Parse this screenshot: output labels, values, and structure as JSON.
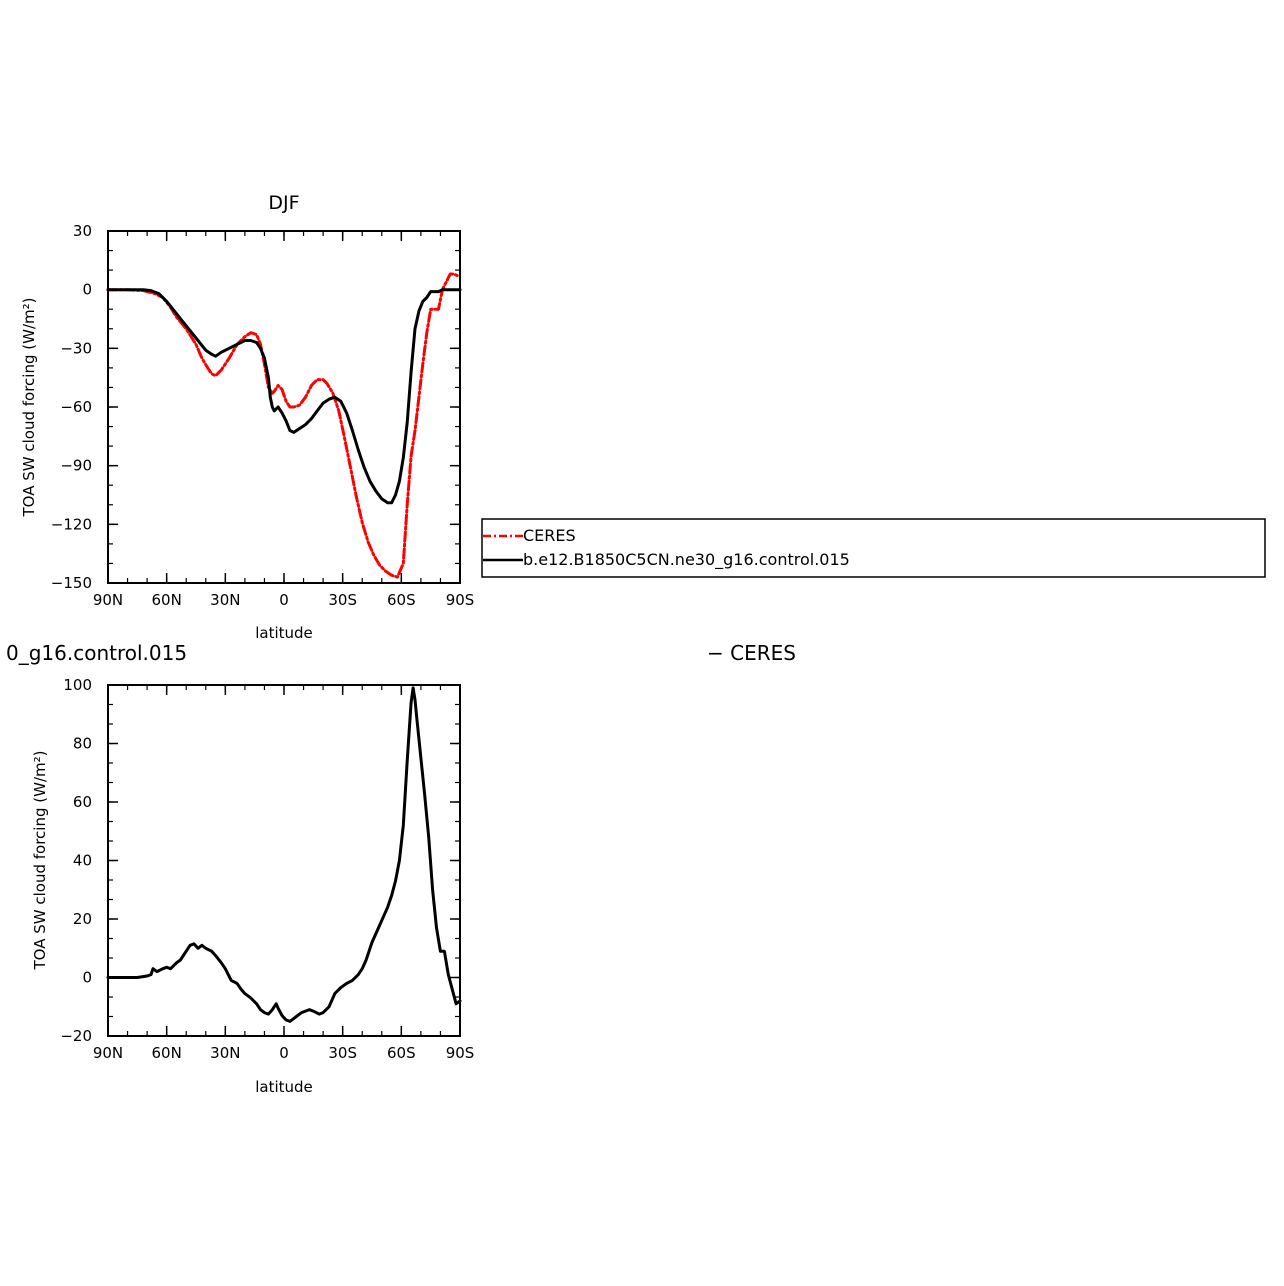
{
  "chart_data": [
    {
      "type": "line",
      "title": "DJF",
      "xlabel": "latitude",
      "ylabel": "TOA SW cloud forcing (W/m²)",
      "xlim": [
        90,
        -90
      ],
      "ylim": [
        -150,
        30
      ],
      "x_ticks": [
        90,
        60,
        30,
        0,
        -30,
        -60,
        -90
      ],
      "x_tick_labels": [
        "90N",
        "60N",
        "30N",
        "0",
        "30S",
        "60S",
        "90S"
      ],
      "y_ticks": [
        30,
        0,
        -30,
        -60,
        -90,
        -120,
        -150
      ],
      "y_tick_labels": [
        "30",
        "0",
        "−30",
        "−60",
        "−90",
        "−120",
        "−150"
      ],
      "series": [
        {
          "name": "CERES",
          "color": "#ff0000",
          "style": "dashed",
          "x": [
            90,
            80,
            72,
            66,
            62,
            58,
            55,
            50,
            45,
            42,
            39,
            37,
            35,
            32,
            28,
            24,
            20,
            17,
            14,
            12,
            10,
            8,
            6,
            5,
            3,
            1,
            -1,
            -3,
            -5,
            -8,
            -11,
            -14,
            -17,
            -20,
            -22,
            -25,
            -28,
            -31,
            -34,
            -37,
            -40,
            -43,
            -46,
            -49,
            -52,
            -55,
            -58,
            -61,
            -63,
            -65,
            -67,
            -69,
            -71,
            -73,
            -75,
            -77,
            -79,
            -81,
            -83,
            -85,
            -87,
            -89
          ],
          "y": [
            0,
            0,
            -0.5,
            -2,
            -4,
            -9,
            -14,
            -20,
            -28,
            -35,
            -40,
            -43,
            -44,
            -41,
            -35,
            -28,
            -24,
            -22,
            -23,
            -28,
            -38,
            -50,
            -53,
            -52,
            -49,
            -51,
            -57,
            -60,
            -60,
            -59,
            -55,
            -49,
            -46,
            -46,
            -48,
            -53,
            -62,
            -76,
            -91,
            -106,
            -119,
            -129,
            -136,
            -141,
            -144,
            -146,
            -147,
            -140,
            -110,
            -85,
            -72,
            -55,
            -38,
            -22,
            -10,
            -10,
            -10,
            0,
            4,
            8,
            8,
            7
          ]
        },
        {
          "name": "b.e12.B1850C5CN.ne30_g16.control.015",
          "color": "#000000",
          "style": "solid",
          "x": [
            90,
            80,
            72,
            68,
            64,
            60,
            56,
            52,
            48,
            44,
            40,
            37,
            35,
            32,
            28,
            24,
            20,
            17,
            14,
            12,
            10,
            8,
            7,
            6,
            5,
            3,
            1,
            -1,
            -3,
            -5,
            -8,
            -11,
            -14,
            -17,
            -20,
            -23,
            -26,
            -29,
            -32,
            -35,
            -38,
            -41,
            -44,
            -47,
            -50,
            -53,
            -55,
            -57,
            -59,
            -61,
            -63,
            -65,
            -67,
            -69,
            -71,
            -73,
            -75,
            -77,
            -79,
            -81,
            -84,
            -87,
            -90
          ],
          "y": [
            0,
            0,
            0,
            -0.5,
            -2,
            -6,
            -11,
            -16,
            -21,
            -26,
            -31,
            -33,
            -34,
            -32,
            -30,
            -28,
            -26,
            -26,
            -27,
            -30,
            -35,
            -45,
            -55,
            -60,
            -62,
            -60,
            -63,
            -67,
            -72,
            -73,
            -71,
            -69,
            -66,
            -62,
            -58,
            -56,
            -55,
            -57,
            -63,
            -72,
            -82,
            -91,
            -98,
            -103,
            -107,
            -109,
            -109,
            -105,
            -98,
            -86,
            -68,
            -42,
            -20,
            -11,
            -6,
            -4,
            -1,
            -1,
            -1,
            0,
            0,
            0,
            0
          ]
        }
      ],
      "legend": {
        "entries": [
          "CERES",
          "b.e12.B1850C5CN.ne30_g16.control.015"
        ],
        "placement": "right, outside plot"
      },
      "grid": false
    },
    {
      "type": "line",
      "title": "0_g16.control.015",
      "title_right": "− CERES",
      "xlabel": "latitude",
      "ylabel": "TOA SW cloud forcing (W/m²)",
      "xlim": [
        90,
        -90
      ],
      "ylim": [
        -20,
        100
      ],
      "x_ticks": [
        90,
        60,
        30,
        0,
        -30,
        -60,
        -90
      ],
      "x_tick_labels": [
        "90N",
        "60N",
        "30N",
        "0",
        "30S",
        "60S",
        "90S"
      ],
      "y_ticks": [
        100,
        80,
        60,
        40,
        20,
        0,
        -20
      ],
      "y_tick_labels": [
        "100",
        "80",
        "60",
        "40",
        "20",
        "0",
        "−20"
      ],
      "series": [
        {
          "color": "#000000",
          "style": "solid",
          "x": [
            90,
            80,
            75,
            70,
            68,
            67,
            65,
            62,
            60,
            58,
            55,
            53,
            50,
            48,
            46,
            44,
            42,
            40,
            37,
            35,
            32,
            30,
            27,
            24,
            22,
            20,
            17,
            14,
            12,
            10,
            8,
            6,
            5,
            4,
            3,
            1,
            -1,
            -3,
            -6,
            -9,
            -11,
            -13,
            -15,
            -18,
            -20,
            -23,
            -26,
            -29,
            -32,
            -35,
            -38,
            -40,
            -42,
            -45,
            -47,
            -49,
            -53,
            -55,
            -57,
            -59,
            -61,
            -63,
            -65,
            -66,
            -67,
            -68,
            -70,
            -72,
            -74,
            -76,
            -78,
            -80,
            -82,
            -84,
            -86,
            -88,
            -90
          ],
          "y": [
            0,
            0,
            0,
            0.5,
            1,
            3,
            2,
            3,
            3.5,
            3,
            5,
            6,
            9,
            11,
            11.5,
            10,
            11,
            10,
            9,
            7.5,
            5,
            3,
            -1,
            -2,
            -4,
            -5.5,
            -7,
            -9,
            -11,
            -12,
            -12.5,
            -11,
            -10,
            -9,
            -10.5,
            -13,
            -14.5,
            -15,
            -13.5,
            -12,
            -11.5,
            -11,
            -11.5,
            -12.5,
            -12,
            -10,
            -5.5,
            -3.5,
            -2,
            -1,
            1,
            3,
            6,
            12,
            15,
            18,
            24,
            28,
            33,
            40,
            52,
            74,
            94,
            99,
            95,
            88,
            75,
            62,
            48,
            30,
            17,
            9,
            9,
            1,
            -4,
            -9,
            -8
          ]
        }
      ],
      "grid": false
    }
  ]
}
